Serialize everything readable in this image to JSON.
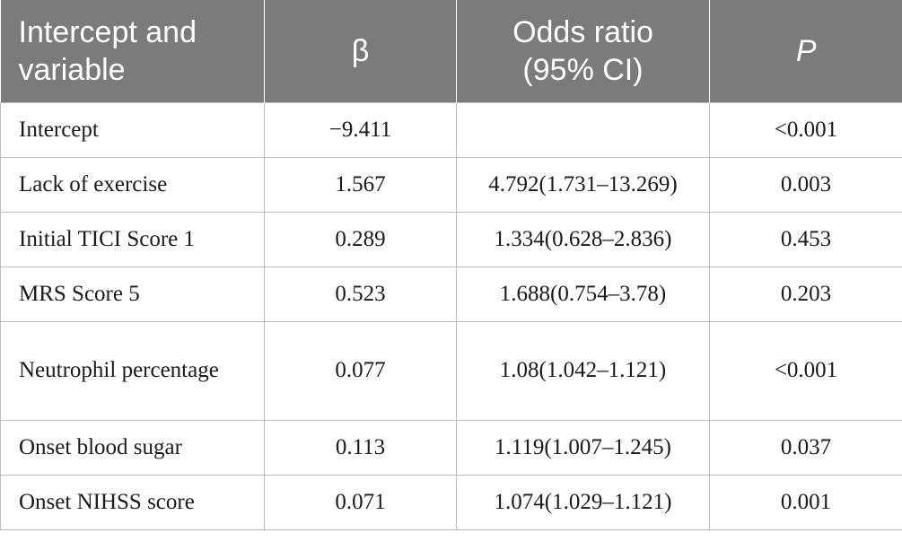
{
  "table": {
    "headers": {
      "variable": "Intercept and variable",
      "beta": "β",
      "odds_ratio": "Odds ratio (95% CI)",
      "p": "P"
    },
    "rows": [
      {
        "variable": "Intercept",
        "beta": "−9.411",
        "odds_ratio": "",
        "p": "<0.001"
      },
      {
        "variable": "Lack of exercise",
        "beta": "1.567",
        "odds_ratio": "4.792(1.731–13.269)",
        "p": "0.003"
      },
      {
        "variable": "Initial TICI Score 1",
        "beta": "0.289",
        "odds_ratio": "1.334(0.628–2.836)",
        "p": "0.453"
      },
      {
        "variable": "MRS Score 5",
        "beta": "0.523",
        "odds_ratio": "1.688(0.754–3.78)",
        "p": "0.203"
      },
      {
        "variable": "Neutrophil percentage",
        "beta": "0.077",
        "odds_ratio": "1.08(1.042–1.121)",
        "p": "<0.001"
      },
      {
        "variable": "Onset blood sugar",
        "beta": "0.113",
        "odds_ratio": "1.119(1.007–1.245)",
        "p": "0.037"
      },
      {
        "variable": "Onset NIHSS score",
        "beta": "0.071",
        "odds_ratio": "1.074(1.029–1.121)",
        "p": "0.001"
      }
    ],
    "colors": {
      "header_bg": "#7b7b7b",
      "header_text": "#ffffff",
      "grid_line": "#bdbdbd"
    }
  }
}
